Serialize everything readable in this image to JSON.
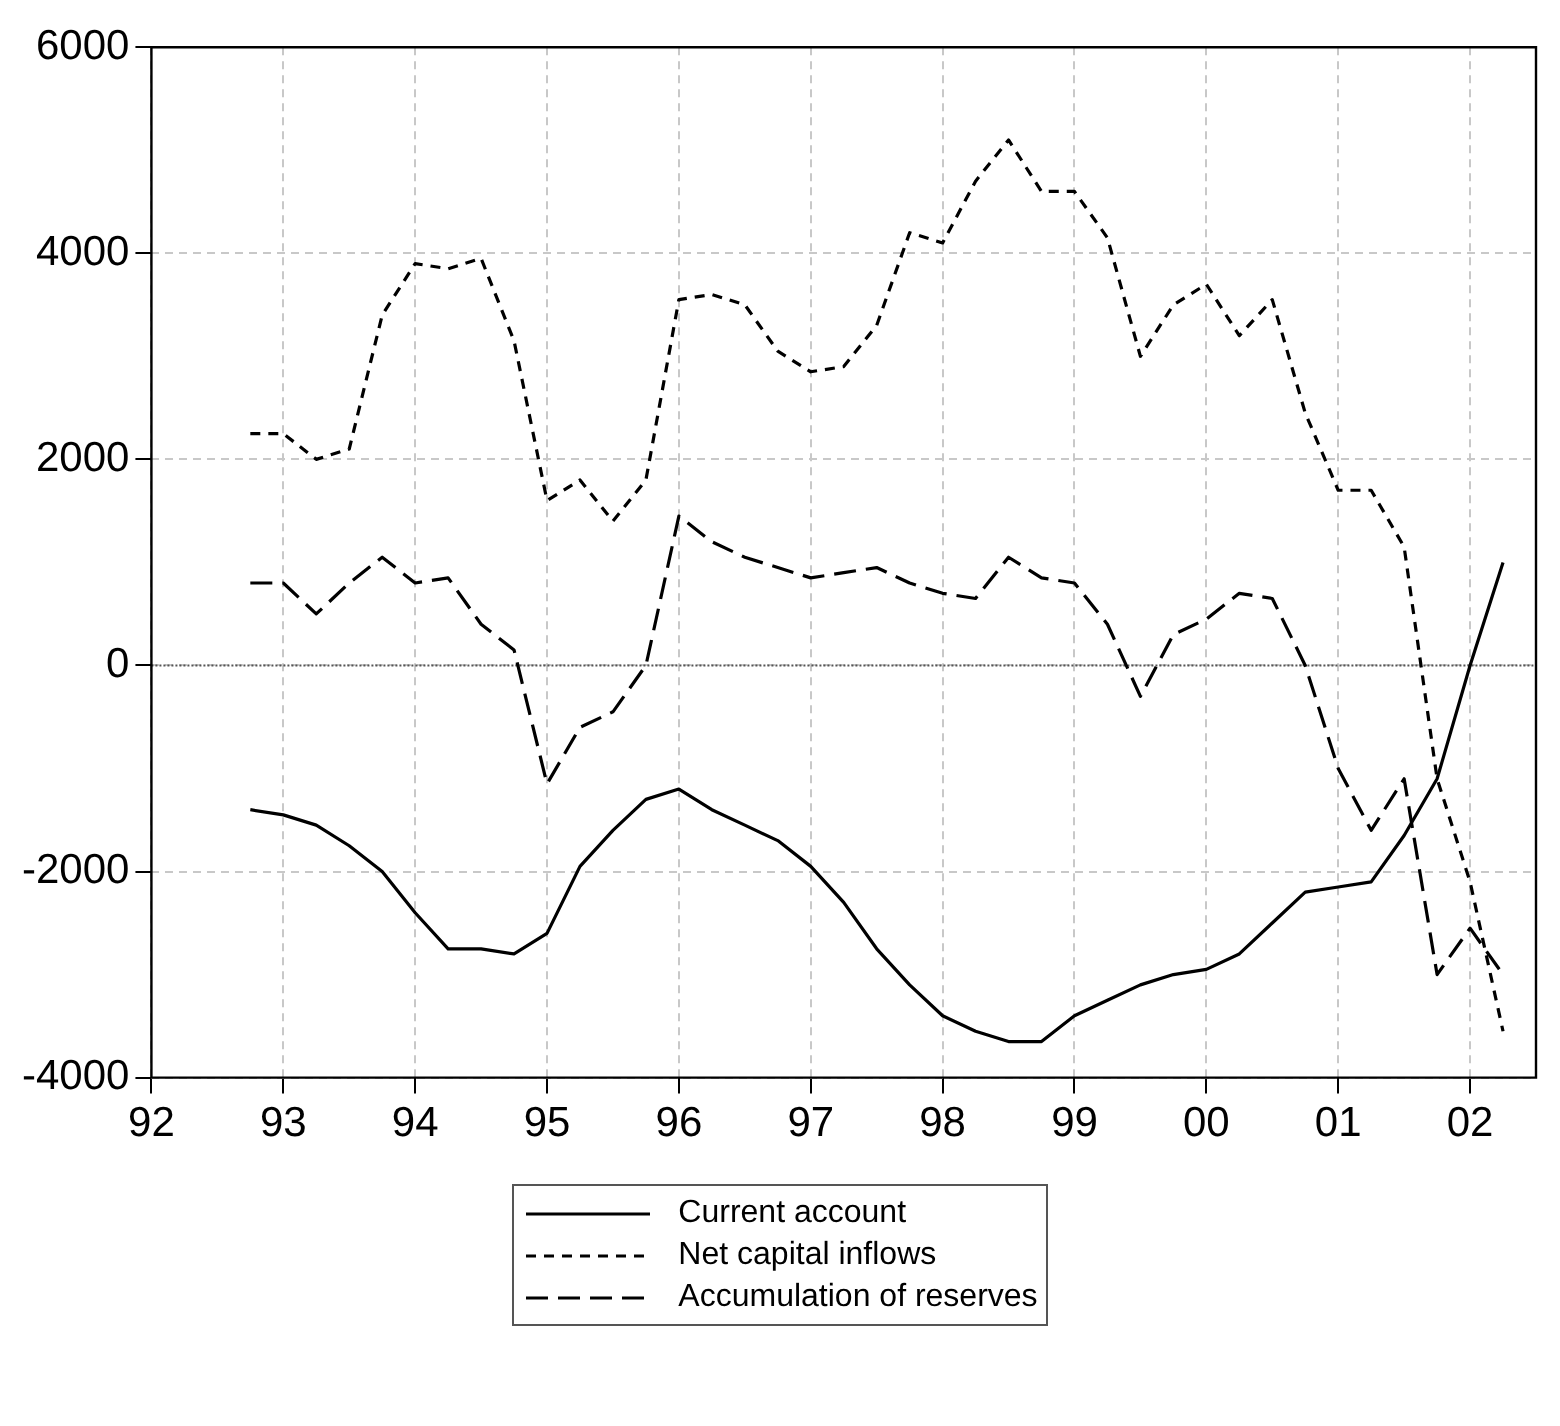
{
  "chart_data": {
    "type": "line",
    "x": [
      1992.75,
      1993,
      1993.25,
      1993.5,
      1993.75,
      1994,
      1994.25,
      1994.5,
      1994.75,
      1995,
      1995.25,
      1995.5,
      1995.75,
      1996,
      1996.25,
      1996.5,
      1996.75,
      1997,
      1997.25,
      1997.5,
      1997.75,
      1998,
      1998.25,
      1998.5,
      1998.75,
      1999,
      1999.25,
      1999.5,
      1999.75,
      2000,
      2000.25,
      2000.5,
      2000.75,
      2001,
      2001.25,
      2001.5,
      2001.75,
      2002,
      2002.25
    ],
    "series": [
      {
        "name": "Current account",
        "color": "#000000",
        "line_style": "solid",
        "values": [
          -1400,
          -1450,
          -1550,
          -1750,
          -2000,
          -2400,
          -2750,
          -2750,
          -2800,
          -2600,
          -1950,
          -1600,
          -1300,
          -1200,
          -1400,
          -1550,
          -1700,
          -1950,
          -2300,
          -2750,
          -3100,
          -3400,
          -3550,
          -3650,
          -3650,
          -3400,
          -3250,
          -3100,
          -3000,
          -2950,
          -2800,
          -2500,
          -2200,
          -2150,
          -2100,
          -1650,
          -1100,
          0,
          1000
        ]
      },
      {
        "name": "Net capital inflows",
        "color": "#000000",
        "line_style": "dashed",
        "values": [
          2250,
          2250,
          2000,
          2100,
          3400,
          3900,
          3850,
          3950,
          3150,
          1600,
          1800,
          1400,
          1800,
          3550,
          3600,
          3500,
          3050,
          2850,
          2900,
          3300,
          4200,
          4100,
          4700,
          5100,
          4600,
          4600,
          4150,
          3000,
          3500,
          3700,
          3200,
          3550,
          2450,
          1700,
          1700,
          1150,
          -1100,
          -2100,
          -3550
        ]
      },
      {
        "name": "Accumulation of reserves",
        "color": "#000000",
        "line_style": "dashed",
        "values": [
          800,
          800,
          500,
          800,
          1050,
          800,
          850,
          400,
          150,
          -1150,
          -600,
          -450,
          0,
          1450,
          1200,
          1050,
          950,
          850,
          900,
          950,
          800,
          700,
          650,
          1050,
          850,
          800,
          400,
          -300,
          300,
          450,
          700,
          650,
          0,
          -1000,
          -1600,
          -1100,
          -3000,
          -2550,
          -3000
        ]
      }
    ],
    "xlim": [
      1992,
      2002.5
    ],
    "xticks": [
      {
        "value": 1992,
        "label": "92"
      },
      {
        "value": 1993,
        "label": "93"
      },
      {
        "value": 1994,
        "label": "94"
      },
      {
        "value": 1995,
        "label": "95"
      },
      {
        "value": 1996,
        "label": "96"
      },
      {
        "value": 1997,
        "label": "97"
      },
      {
        "value": 1998,
        "label": "98"
      },
      {
        "value": 1999,
        "label": "99"
      },
      {
        "value": 2000,
        "label": "00"
      },
      {
        "value": 2001,
        "label": "01"
      },
      {
        "value": 2002,
        "label": "02"
      }
    ],
    "ylim": [
      -4000,
      6000
    ],
    "yticks": [
      -4000,
      -2000,
      0,
      2000,
      4000,
      6000
    ],
    "ref_lines": [
      {
        "axis": "y",
        "value": 0,
        "color": "#555555",
        "line_style": "dotted"
      }
    ],
    "grid": true,
    "legend": "bottom",
    "marker": "none"
  }
}
